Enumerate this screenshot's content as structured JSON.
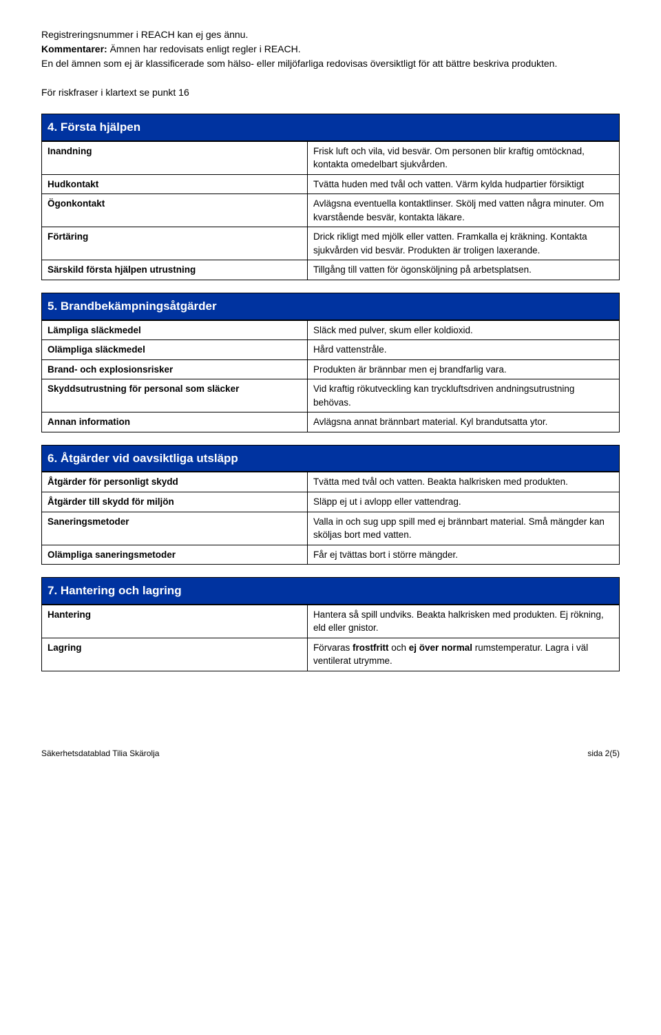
{
  "intro": {
    "line1": "Registreringsnummer i REACH kan ej ges ännu.",
    "line2_bold": "Kommentarer:",
    "line2_rest": " Ämnen har redovisats enligt regler i REACH.",
    "line3": "En del ämnen som ej är klassificerade som hälso- eller miljöfarliga redovisas översiktligt för att bättre beskriva produkten.",
    "line4": "För riskfraser i klartext se punkt 16"
  },
  "sections": {
    "s4": {
      "heading": "4. Första hjälpen",
      "rows": [
        {
          "key": "Inandning",
          "val": "Frisk luft och vila, vid besvär.\nOm personen blir kraftig omtöcknad, kontakta omedelbart sjukvården."
        },
        {
          "key": "Hudkontakt",
          "val": "Tvätta huden med tvål och vatten. Värm kylda hudpartier försiktigt"
        },
        {
          "key": "Ögonkontakt",
          "val": "Avlägsna eventuella kontaktlinser. Skölj med vatten några minuter.\nOm kvarstående besvär, kontakta läkare."
        },
        {
          "key": "Förtäring",
          "val": "Drick rikligt med mjölk eller vatten. Framkalla ej kräkning. Kontakta sjukvården vid besvär. Produkten är troligen laxerande."
        },
        {
          "key": "Särskild första hjälpen utrustning",
          "val": "Tillgång till vatten för ögonsköljning på arbetsplatsen."
        }
      ]
    },
    "s5": {
      "heading": "5. Brandbekämpningsåtgärder",
      "rows": [
        {
          "key": "Lämpliga släckmedel",
          "val": "Släck med pulver, skum eller koldioxid."
        },
        {
          "key": "Olämpliga släckmedel",
          "val": "Hård vattenstråle."
        },
        {
          "key": "Brand- och explosionsrisker",
          "val": "Produkten är brännbar men ej brandfarlig vara."
        },
        {
          "key": "Skyddsutrustning för personal som släcker",
          "val": "Vid kraftig rökutveckling kan tryckluftsdriven andningsutrustning behövas."
        },
        {
          "key": "Annan information",
          "val": "Avlägsna annat brännbart material. Kyl brandutsatta ytor."
        }
      ]
    },
    "s6": {
      "heading": "6. Åtgärder vid oavsiktliga utsläpp",
      "rows": [
        {
          "key": "Åtgärder för personligt skydd",
          "val": "Tvätta med tvål och vatten. Beakta halkrisken med produkten."
        },
        {
          "key": "Åtgärder till skydd för miljön",
          "val": "Släpp ej ut i avlopp eller vattendrag."
        },
        {
          "key": "Saneringsmetoder",
          "val": "Valla in och sug upp spill med ej brännbart material. Små mängder kan sköljas bort med vatten."
        },
        {
          "key": "Olämpliga saneringsmetoder",
          "val": "Får ej tvättas bort i större mängder."
        }
      ]
    },
    "s7": {
      "heading": "7. Hantering och lagring",
      "rows": [
        {
          "key": "Hantering",
          "val_html": "Hantera så spill undviks. Beakta halkrisken med produkten. Ej rökning, eld eller gnistor."
        },
        {
          "key": "Lagring",
          "val_html": "Förvaras <b>frostfritt</b> och <b>ej över normal</b> rumstemperatur. Lagra i väl ventilerat utrymme."
        }
      ]
    }
  },
  "footer": {
    "left": "Säkerhetsdatablad Tilia Skärolja",
    "right": "sida 2(5)"
  },
  "colors": {
    "heading_bg": "#0033a0",
    "heading_fg": "#ffffff",
    "border": "#000000",
    "text": "#000000",
    "background": "#ffffff"
  },
  "typography": {
    "font_family": "Arial, Helvetica, sans-serif",
    "body_pt": 14,
    "heading_pt": 17,
    "footer_pt": 12
  }
}
